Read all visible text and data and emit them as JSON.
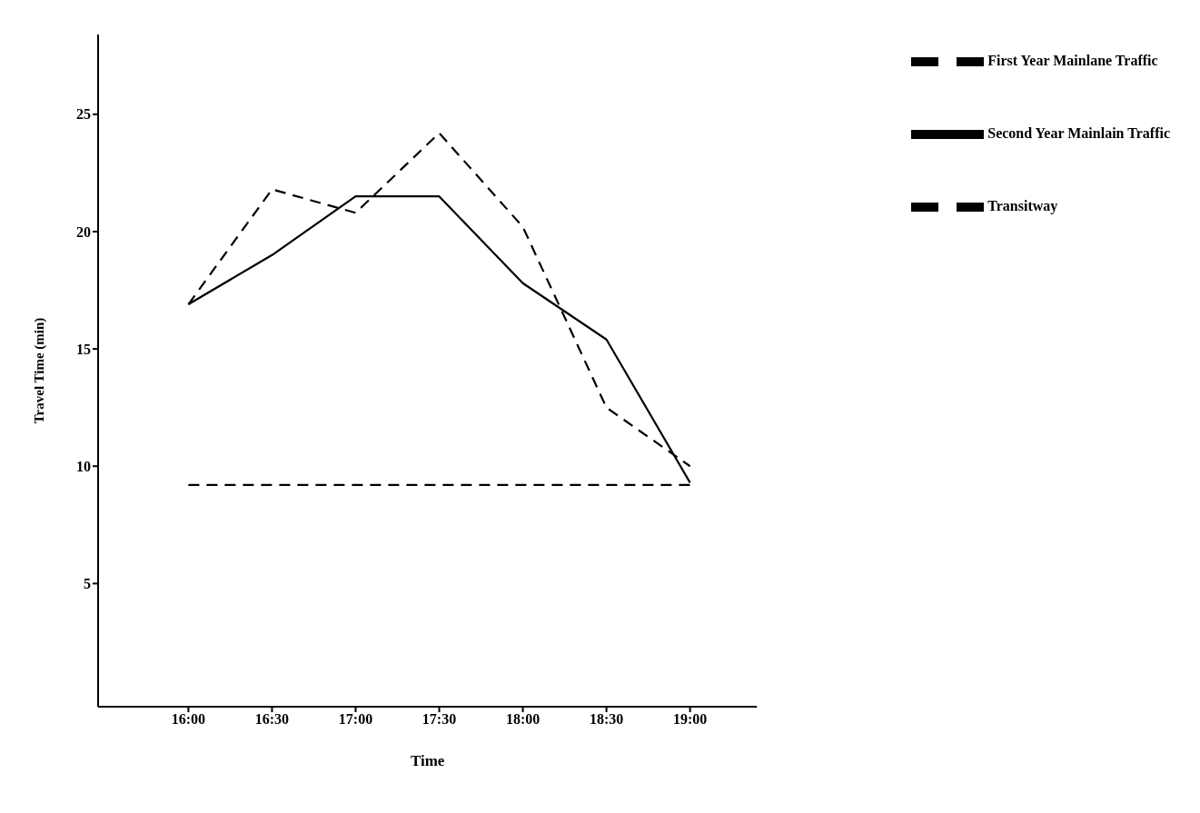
{
  "chart_data": {
    "type": "line",
    "xlabel": "Time",
    "ylabel": "Travel Time (min)",
    "x": [
      16,
      16.5,
      17,
      17.5,
      18,
      18.5,
      19
    ],
    "xlim": [
      15.46,
      19.4
    ],
    "xticks": [
      {
        "value": 16,
        "label": "16:00"
      },
      {
        "value": 16.5,
        "label": "16:30"
      },
      {
        "value": 17,
        "label": "17:00"
      },
      {
        "value": 17.5,
        "label": "17:30"
      },
      {
        "value": 18,
        "label": "18:00"
      },
      {
        "value": 18.5,
        "label": "18:30"
      },
      {
        "value": 19,
        "label": "19:00"
      }
    ],
    "ylim": [
      -0.25,
      28.4
    ],
    "yticks": [
      5,
      10,
      15,
      20,
      25
    ],
    "series": [
      {
        "name": "Transitway",
        "color": "#000000",
        "line_style": "dashed",
        "values": [
          9.2,
          9.2,
          9.2,
          9.2,
          9.2,
          9.2,
          9.2
        ]
      },
      {
        "name": "First Year Mainlane Traffic",
        "color": "#000000",
        "line_style": "dashed",
        "values": [
          16.9,
          21.8,
          20.8,
          24.2,
          20.2,
          12.5,
          10.0
        ]
      },
      {
        "name": "Second Year Mainlain Traffic",
        "color": "#000000",
        "line_style": "solid",
        "values": [
          16.9,
          19.0,
          21.5,
          21.5,
          17.8,
          15.4,
          9.3
        ]
      }
    ],
    "grid": false,
    "legend": "top right",
    "marker": "none"
  }
}
